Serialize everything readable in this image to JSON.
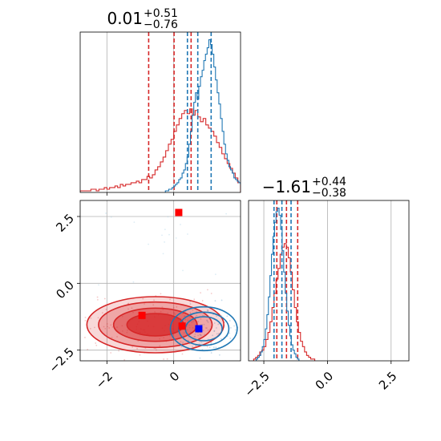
{
  "chart_data": [
    {
      "panel": "marginal-1",
      "type": "histogram",
      "title_parts": {
        "value": "0.01",
        "plus": "+0.51",
        "minus": "−0.76"
      },
      "xlim": [
        -2.8,
        2.0
      ],
      "grid": true,
      "series": [
        {
          "color": "#d62728",
          "quantiles": [
            -0.75,
            0.01,
            0.52
          ],
          "bins": {
            "x0": -2.8,
            "width": 0.08,
            "heights": [
              1,
              1,
              1,
              1,
              2,
              2,
              1,
              2,
              2,
              3,
              2,
              3,
              3,
              4,
              3,
              5,
              4,
              5,
              5,
              6,
              6,
              7,
              6,
              8,
              8,
              10,
              9,
              11,
              14,
              16,
              19,
              22,
              26,
              30,
              33,
              38,
              42,
              46,
              49,
              51,
              49,
              52,
              48,
              51,
              47,
              44,
              46,
              42,
              40,
              38,
              35,
              31,
              28,
              24,
              21,
              18,
              15,
              12,
              9,
              6
            ]
          }
        },
        {
          "color": "#1f77b4",
          "quantiles": [
            0.41,
            0.72,
            1.12
          ],
          "bins": {
            "x0": -0.25,
            "width": 0.05,
            "heights": [
              1,
              1,
              2,
              2,
              3,
              4,
              5,
              6,
              8,
              9,
              12,
              14,
              18,
              22,
              30,
              38,
              48,
              56,
              62,
              58,
              66,
              72,
              76,
              82,
              86,
              90,
              95,
              92,
              86,
              78,
              70,
              62,
              55,
              46,
              38,
              30,
              24,
              20,
              16,
              14,
              12,
              9,
              8,
              7,
              6,
              5,
              4,
              3,
              2,
              2,
              1
            ]
          }
        }
      ]
    },
    {
      "panel": "marginal-2",
      "type": "histogram",
      "title_parts": {
        "value": "−1.61",
        "plus": "+0.44",
        "minus": "−0.38"
      },
      "xlim": [
        -3.1,
        3.2
      ],
      "xticks": [
        "−2.5",
        "0.0",
        "2.5"
      ],
      "grid": true,
      "series": [
        {
          "color": "#d62728",
          "quantiles": [
            -1.99,
            -1.61,
            -1.17
          ],
          "bins": {
            "x0": -2.9,
            "width": 0.08,
            "heights": [
              1,
              2,
              3,
              5,
              6,
              8,
              12,
              16,
              22,
              30,
              38,
              46,
              52,
              60,
              64,
              66,
              64,
              58,
              50,
              40,
              30,
              22,
              16,
              11,
              8,
              5,
              3,
              2,
              1,
              1
            ]
          }
        },
        {
          "color": "#1f77b4",
          "quantiles": [
            -2.1,
            -1.79,
            -1.43
          ],
          "bins": {
            "x0": -2.8,
            "width": 0.06,
            "heights": [
              1,
              2,
              3,
              5,
              8,
              12,
              18,
              26,
              36,
              48,
              60,
              70,
              78,
              84,
              86,
              82,
              74,
              62,
              50,
              38,
              28,
              20,
              14,
              9,
              6,
              4,
              2,
              1
            ]
          }
        }
      ]
    },
    {
      "panel": "joint",
      "type": "scatter",
      "xlim": [
        -2.8,
        2.0
      ],
      "ylim": [
        -2.9,
        3.1
      ],
      "xticks": [
        "−2",
        "0"
      ],
      "yticks": [
        "−2.5",
        "0.0",
        "2.5"
      ],
      "grid": true,
      "markers": [
        {
          "color": "#ff0000",
          "x": 0.15,
          "y": 2.65
        },
        {
          "color": "#ff0000",
          "x": -0.95,
          "y": -1.2
        },
        {
          "color": "#ff0000",
          "x": 0.25,
          "y": -1.6
        },
        {
          "color": "#0000ff",
          "x": 0.75,
          "y": -1.7
        }
      ],
      "contours": [
        {
          "color": "#d62728",
          "cx": -0.55,
          "cy": -1.55,
          "rx": [
            2.05,
            1.7,
            1.25,
            0.85
          ],
          "ry": [
            1.05,
            0.85,
            0.62,
            0.42
          ]
        },
        {
          "color": "#1f77b4",
          "cx": 0.9,
          "cy": -1.7,
          "rx": [
            1.0,
            0.75,
            0.55
          ],
          "ry": [
            0.82,
            0.62,
            0.45
          ]
        }
      ]
    }
  ]
}
